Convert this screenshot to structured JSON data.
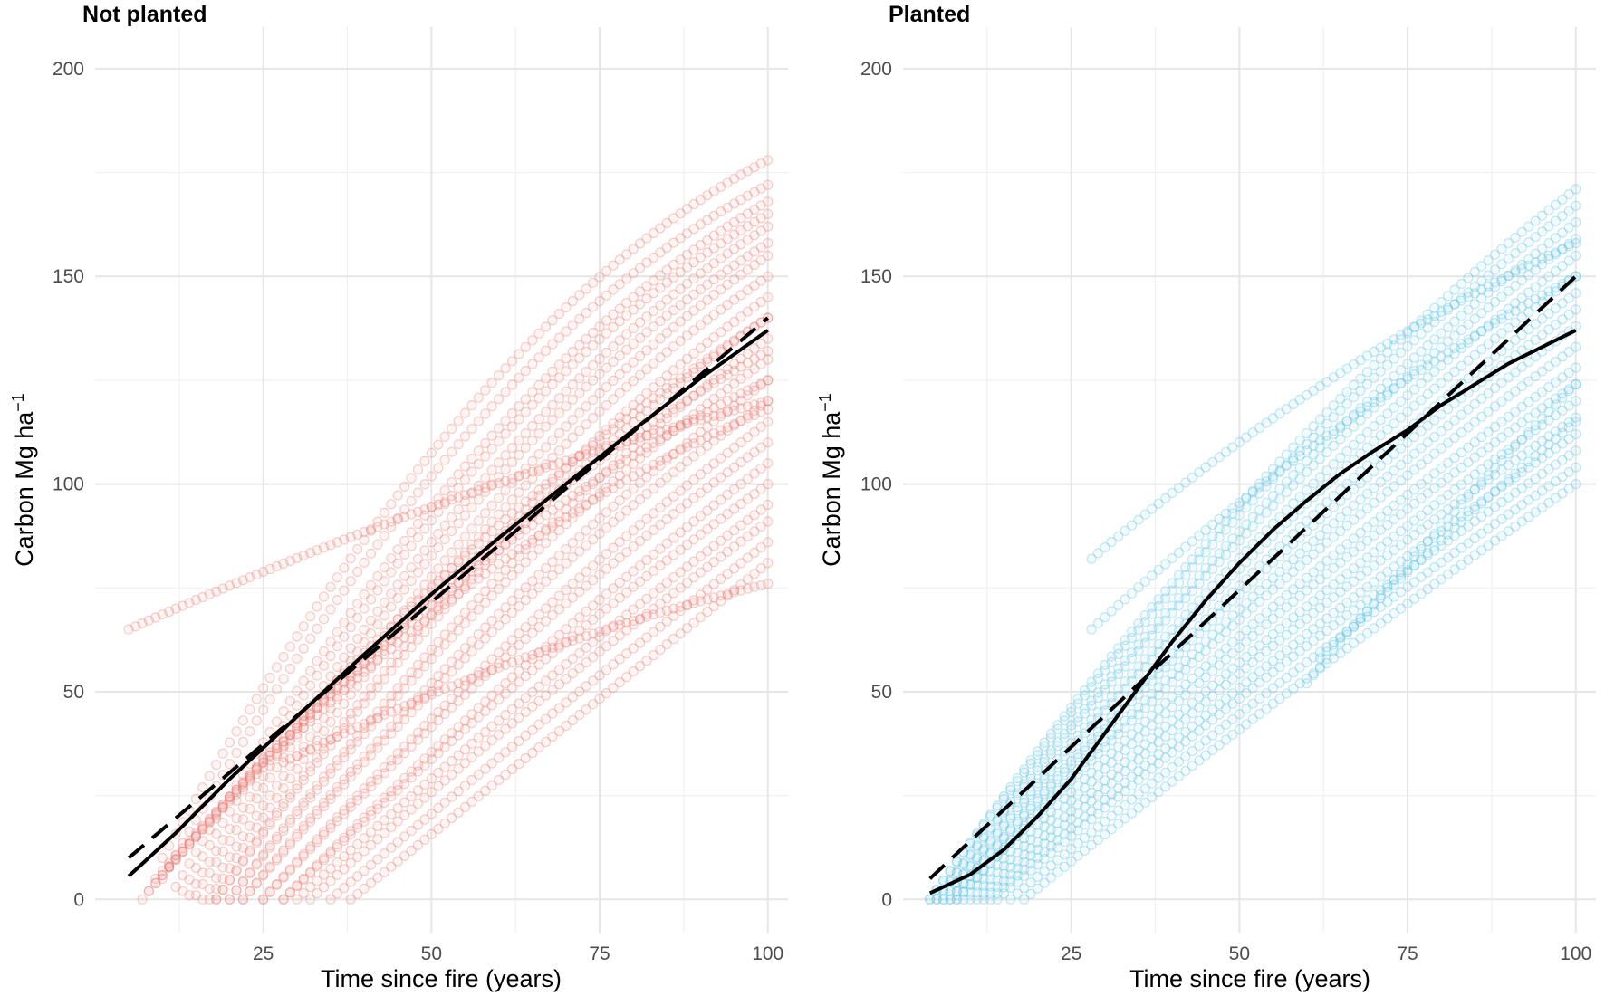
{
  "chart_data": [
    {
      "type": "scatter",
      "title": "Not planted",
      "xlabel": "Time since fire (years)",
      "ylabel": "Carbon Mg ha",
      "ylabel_superscript": "−1",
      "xlim": [
        0,
        103
      ],
      "ylim": [
        -8,
        210
      ],
      "xticks": [
        25,
        50,
        75,
        100
      ],
      "yticks": [
        0,
        50,
        100,
        150,
        200
      ],
      "xtick_labels": [
        "25",
        "50",
        "75",
        "100"
      ],
      "ytick_labels": [
        "0",
        "50",
        "100",
        "150",
        "200"
      ],
      "point_color": "#e8776d",
      "series": [
        {
          "name": "trajectory-1",
          "x": [
            5,
            100
          ],
          "values": [
            65,
            120
          ],
          "curve": 0.25
        },
        {
          "name": "trajectory-2",
          "x": [
            10,
            100
          ],
          "values": [
            10,
            178
          ],
          "curve": 0.55
        },
        {
          "name": "trajectory-3",
          "x": [
            10,
            100
          ],
          "values": [
            5,
            172
          ],
          "curve": 0.55
        },
        {
          "name": "trajectory-4",
          "x": [
            12,
            100
          ],
          "values": [
            3,
            168
          ],
          "curve": 0.5
        },
        {
          "name": "trajectory-5",
          "x": [
            13,
            100
          ],
          "values": [
            2,
            165
          ],
          "curve": 0.5
        },
        {
          "name": "trajectory-6",
          "x": [
            14,
            100
          ],
          "values": [
            1,
            162
          ],
          "curve": 0.45
        },
        {
          "name": "trajectory-7",
          "x": [
            15,
            100
          ],
          "values": [
            1,
            158
          ],
          "curve": 0.45
        },
        {
          "name": "trajectory-8",
          "x": [
            16,
            100
          ],
          "values": [
            0,
            155
          ],
          "curve": 0.4
        },
        {
          "name": "trajectory-9",
          "x": [
            17,
            100
          ],
          "values": [
            0,
            150
          ],
          "curve": 0.4
        },
        {
          "name": "trajectory-10",
          "x": [
            18,
            100
          ],
          "values": [
            0,
            145
          ],
          "curve": 0.35
        },
        {
          "name": "trajectory-11",
          "x": [
            18,
            100
          ],
          "values": [
            0,
            140
          ],
          "curve": 0.35
        },
        {
          "name": "trajectory-12",
          "x": [
            20,
            100
          ],
          "values": [
            0,
            135
          ],
          "curve": 0.3
        },
        {
          "name": "trajectory-13",
          "x": [
            20,
            100
          ],
          "values": [
            0,
            130
          ],
          "curve": 0.3
        },
        {
          "name": "trajectory-14",
          "x": [
            22,
            100
          ],
          "values": [
            0,
            125
          ],
          "curve": 0.25
        },
        {
          "name": "trajectory-15",
          "x": [
            22,
            100
          ],
          "values": [
            0,
            120
          ],
          "curve": 0.25
        },
        {
          "name": "trajectory-16",
          "x": [
            25,
            100
          ],
          "values": [
            0,
            115
          ],
          "curve": 0.2
        },
        {
          "name": "trajectory-17",
          "x": [
            25,
            100
          ],
          "values": [
            0,
            110
          ],
          "curve": 0.2
        },
        {
          "name": "trajectory-18",
          "x": [
            28,
            100
          ],
          "values": [
            0,
            105
          ],
          "curve": 0.15
        },
        {
          "name": "trajectory-19",
          "x": [
            28,
            100
          ],
          "values": [
            0,
            100
          ],
          "curve": 0.15
        },
        {
          "name": "trajectory-20",
          "x": [
            30,
            100
          ],
          "values": [
            0,
            95
          ],
          "curve": 0.1
        },
        {
          "name": "trajectory-21",
          "x": [
            32,
            100
          ],
          "values": [
            0,
            91
          ],
          "curve": 0.1
        },
        {
          "name": "trajectory-22",
          "x": [
            35,
            100
          ],
          "values": [
            0,
            86
          ],
          "curve": 0.05
        },
        {
          "name": "trajectory-23",
          "x": [
            38,
            100
          ],
          "values": [
            0,
            81
          ],
          "curve": 0.0
        },
        {
          "name": "trajectory-24",
          "x": [
            28,
            100
          ],
          "values": [
            33,
            76
          ],
          "curve": 0.35
        },
        {
          "name": "trajectory-25",
          "x": [
            7,
            100
          ],
          "values": [
            0,
            140
          ],
          "curve": 0.3
        },
        {
          "name": "trajectory-26",
          "x": [
            8,
            100
          ],
          "values": [
            2,
            132
          ],
          "curve": 0.35
        },
        {
          "name": "trajectory-27",
          "x": [
            9,
            100
          ],
          "values": [
            5,
            125
          ],
          "curve": 0.4
        },
        {
          "name": "trajectory-28",
          "x": [
            11,
            100
          ],
          "values": [
            8,
            118
          ],
          "curve": 0.45
        }
      ],
      "fit_lines": [
        {
          "name": "model-fit",
          "style": "solid",
          "x": [
            5,
            12,
            20,
            30,
            40,
            50,
            60,
            70,
            80,
            90,
            100
          ],
          "values": [
            5.6,
            16,
            29,
            44,
            59,
            73.5,
            87,
            100,
            113,
            125.5,
            137
          ]
        },
        {
          "name": "linear-fit",
          "style": "dashed",
          "x": [
            5,
            100
          ],
          "values": [
            10,
            140
          ]
        }
      ]
    },
    {
      "type": "scatter",
      "title": "Planted",
      "xlabel": "Time since fire (years)",
      "ylabel": "Carbon Mg ha",
      "ylabel_superscript": "−1",
      "xlim": [
        0,
        103
      ],
      "ylim": [
        -8,
        210
      ],
      "xticks": [
        25,
        50,
        75,
        100
      ],
      "yticks": [
        0,
        50,
        100,
        150,
        200
      ],
      "xtick_labels": [
        "25",
        "50",
        "75",
        "100"
      ],
      "ytick_labels": [
        "0",
        "50",
        "100",
        "150",
        "200"
      ],
      "point_color": "#56bfe0",
      "series": [
        {
          "name": "trajectory-1",
          "x": [
            4,
            100
          ],
          "values": [
            0,
            171
          ],
          "curve": 0.3
        },
        {
          "name": "trajectory-2",
          "x": [
            4,
            100
          ],
          "values": [
            0,
            167
          ],
          "curve": 0.3
        },
        {
          "name": "trajectory-3",
          "x": [
            5,
            100
          ],
          "values": [
            0,
            163
          ],
          "curve": 0.28
        },
        {
          "name": "trajectory-4",
          "x": [
            5,
            100
          ],
          "values": [
            0,
            159
          ],
          "curve": 0.28
        },
        {
          "name": "trajectory-5",
          "x": [
            6,
            100
          ],
          "values": [
            0,
            155
          ],
          "curve": 0.25
        },
        {
          "name": "trajectory-6",
          "x": [
            6,
            100
          ],
          "values": [
            0,
            150
          ],
          "curve": 0.25
        },
        {
          "name": "trajectory-7",
          "x": [
            7,
            100
          ],
          "values": [
            0,
            146
          ],
          "curve": 0.22
        },
        {
          "name": "trajectory-8",
          "x": [
            7,
            100
          ],
          "values": [
            0,
            142
          ],
          "curve": 0.22
        },
        {
          "name": "trajectory-9",
          "x": [
            8,
            100
          ],
          "values": [
            0,
            138
          ],
          "curve": 0.2
        },
        {
          "name": "trajectory-10",
          "x": [
            8,
            100
          ],
          "values": [
            0,
            133
          ],
          "curve": 0.2
        },
        {
          "name": "trajectory-11",
          "x": [
            9,
            100
          ],
          "values": [
            0,
            128
          ],
          "curve": 0.18
        },
        {
          "name": "trajectory-12",
          "x": [
            10,
            100
          ],
          "values": [
            0,
            124
          ],
          "curve": 0.18
        },
        {
          "name": "trajectory-13",
          "x": [
            11,
            100
          ],
          "values": [
            0,
            120
          ],
          "curve": 0.15
        },
        {
          "name": "trajectory-14",
          "x": [
            12,
            100
          ],
          "values": [
            0,
            116
          ],
          "curve": 0.15
        },
        {
          "name": "trajectory-15",
          "x": [
            13,
            100
          ],
          "values": [
            0,
            112
          ],
          "curve": 0.12
        },
        {
          "name": "trajectory-16",
          "x": [
            14,
            100
          ],
          "values": [
            0,
            108
          ],
          "curve": 0.12
        },
        {
          "name": "trajectory-17",
          "x": [
            16,
            100
          ],
          "values": [
            0,
            104
          ],
          "curve": 0.1
        },
        {
          "name": "trajectory-18",
          "x": [
            18,
            100
          ],
          "values": [
            0,
            100
          ],
          "curve": 0.08
        },
        {
          "name": "trajectory-19",
          "x": [
            28,
            100
          ],
          "values": [
            82,
            158
          ],
          "curve": 0.3
        },
        {
          "name": "trajectory-20",
          "x": [
            28,
            100
          ],
          "values": [
            65,
            150
          ],
          "curve": 0.25
        },
        {
          "name": "trajectory-21",
          "x": [
            60,
            100
          ],
          "values": [
            52,
            124
          ],
          "curve": 0.1
        },
        {
          "name": "trajectory-22",
          "x": [
            62,
            100
          ],
          "values": [
            58,
            115
          ],
          "curve": 0.1
        }
      ],
      "fit_lines": [
        {
          "name": "model-fit",
          "style": "solid",
          "x": [
            4,
            10,
            15,
            20,
            25,
            30,
            35,
            40,
            45,
            50,
            55,
            60,
            65,
            70,
            75,
            80,
            85,
            90,
            95,
            100
          ],
          "values": [
            1.5,
            6,
            12,
            20,
            29,
            40,
            51,
            62,
            72,
            81,
            89,
            96,
            102.5,
            108,
            113,
            119,
            124,
            129,
            133,
            137
          ]
        },
        {
          "name": "linear-fit",
          "style": "dashed",
          "x": [
            4,
            100
          ],
          "values": [
            5,
            150
          ]
        }
      ]
    }
  ]
}
